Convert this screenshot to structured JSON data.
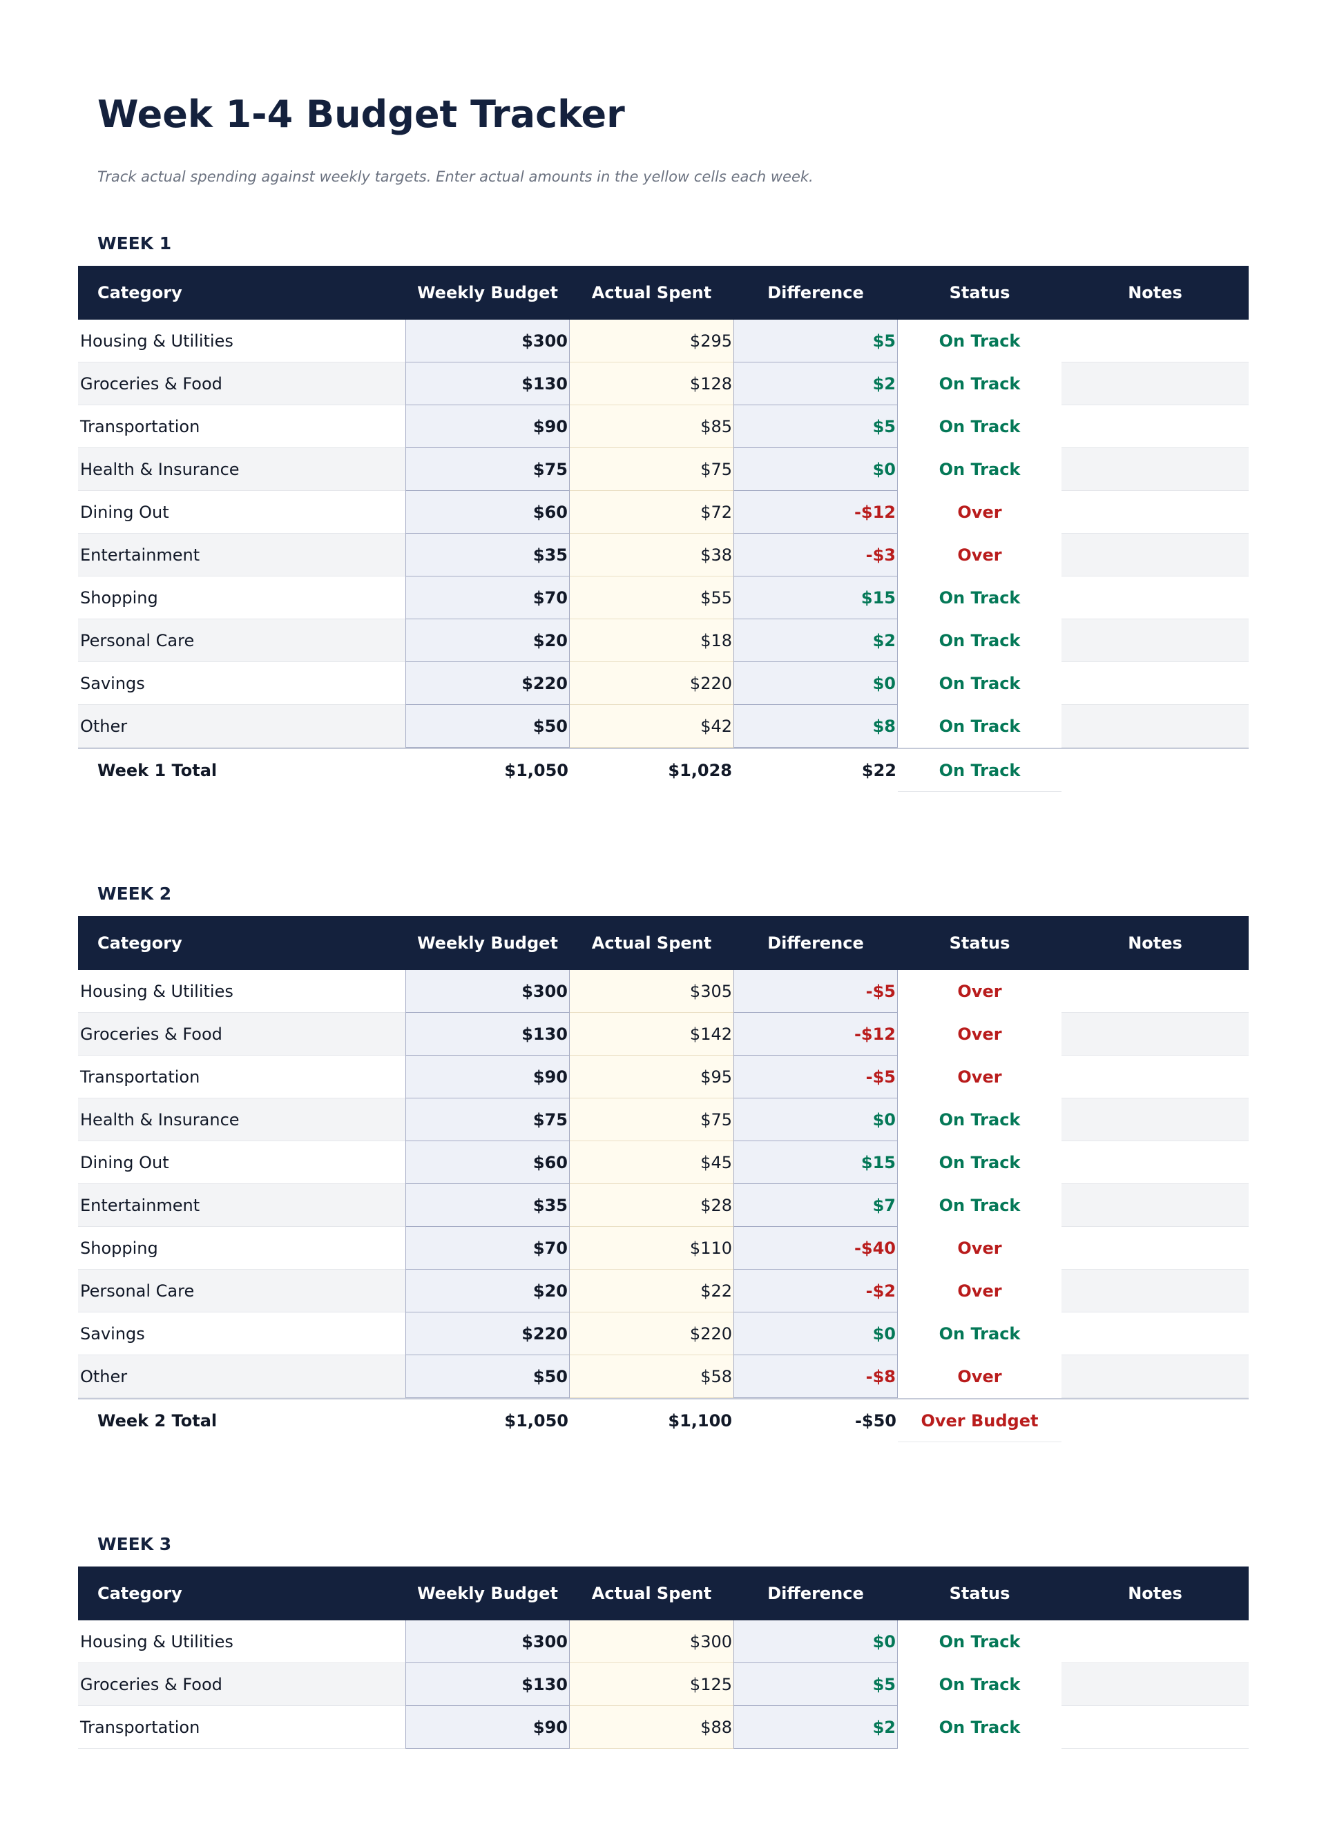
{
  "header": {
    "title": "Week 1-4 Budget Tracker",
    "subtitle": "Track actual spending against weekly targets. Enter actual amounts in the yellow cells each week."
  },
  "weeks": [
    {
      "label": "WEEK 1",
      "columns": [
        "Category",
        "Weekly Budget",
        "Actual Spent",
        "Difference",
        "Status",
        "Notes"
      ],
      "rows": [
        [
          "Housing & Utilities",
          "$300",
          "$295",
          "$5",
          "On Track"
        ],
        [
          "Groceries & Food",
          "$130",
          "$128",
          "$2",
          "On Track"
        ],
        [
          "Transportation",
          "$90",
          "$85",
          "$5",
          "On Track"
        ],
        [
          "Health & Insurance",
          "$75",
          "$75",
          "$0",
          "On Track"
        ],
        [
          "Dining Out",
          "$60",
          "$72",
          "-$12",
          "Over"
        ],
        [
          "Entertainment",
          "$35",
          "$38",
          "-$3",
          "Over"
        ],
        [
          "Shopping",
          "$70",
          "$55",
          "$15",
          "On Track"
        ],
        [
          "Personal Care",
          "$20",
          "$18",
          "$2",
          "On Track"
        ],
        [
          "Savings",
          "$220",
          "$220",
          "$0",
          "On Track"
        ],
        [
          "Other",
          "$50",
          "$42",
          "$8",
          "On Track"
        ]
      ],
      "total": [
        "Week 1 Total",
        "$1,050",
        "$1,028",
        "$22",
        "On Track"
      ]
    },
    {
      "label": "WEEK 2",
      "columns": [
        "Category",
        "Weekly Budget",
        "Actual Spent",
        "Difference",
        "Status",
        "Notes"
      ],
      "rows": [
        [
          "Housing & Utilities",
          "$300",
          "$305",
          "-$5",
          "Over"
        ],
        [
          "Groceries & Food",
          "$130",
          "$142",
          "-$12",
          "Over"
        ],
        [
          "Transportation",
          "$90",
          "$95",
          "-$5",
          "Over"
        ],
        [
          "Health & Insurance",
          "$75",
          "$75",
          "$0",
          "On Track"
        ],
        [
          "Dining Out",
          "$60",
          "$45",
          "$15",
          "On Track"
        ],
        [
          "Entertainment",
          "$35",
          "$28",
          "$7",
          "On Track"
        ],
        [
          "Shopping",
          "$70",
          "$110",
          "-$40",
          "Over"
        ],
        [
          "Personal Care",
          "$20",
          "$22",
          "-$2",
          "Over"
        ],
        [
          "Savings",
          "$220",
          "$220",
          "$0",
          "On Track"
        ],
        [
          "Other",
          "$50",
          "$58",
          "-$8",
          "Over"
        ]
      ],
      "total": [
        "Week 2 Total",
        "$1,050",
        "$1,100",
        "-$50",
        "Over Budget"
      ]
    },
    {
      "label": "WEEK 3",
      "columns": [
        "Category",
        "Weekly Budget",
        "Actual Spent",
        "Difference",
        "Status",
        "Notes"
      ],
      "rows": [
        [
          "Housing & Utilities",
          "$300",
          "$300",
          "$0",
          "On Track"
        ],
        [
          "Groceries & Food",
          "$130",
          "$125",
          "$5",
          "On Track"
        ],
        [
          "Transportation",
          "$90",
          "$88",
          "$2",
          "On Track"
        ]
      ]
    }
  ]
}
